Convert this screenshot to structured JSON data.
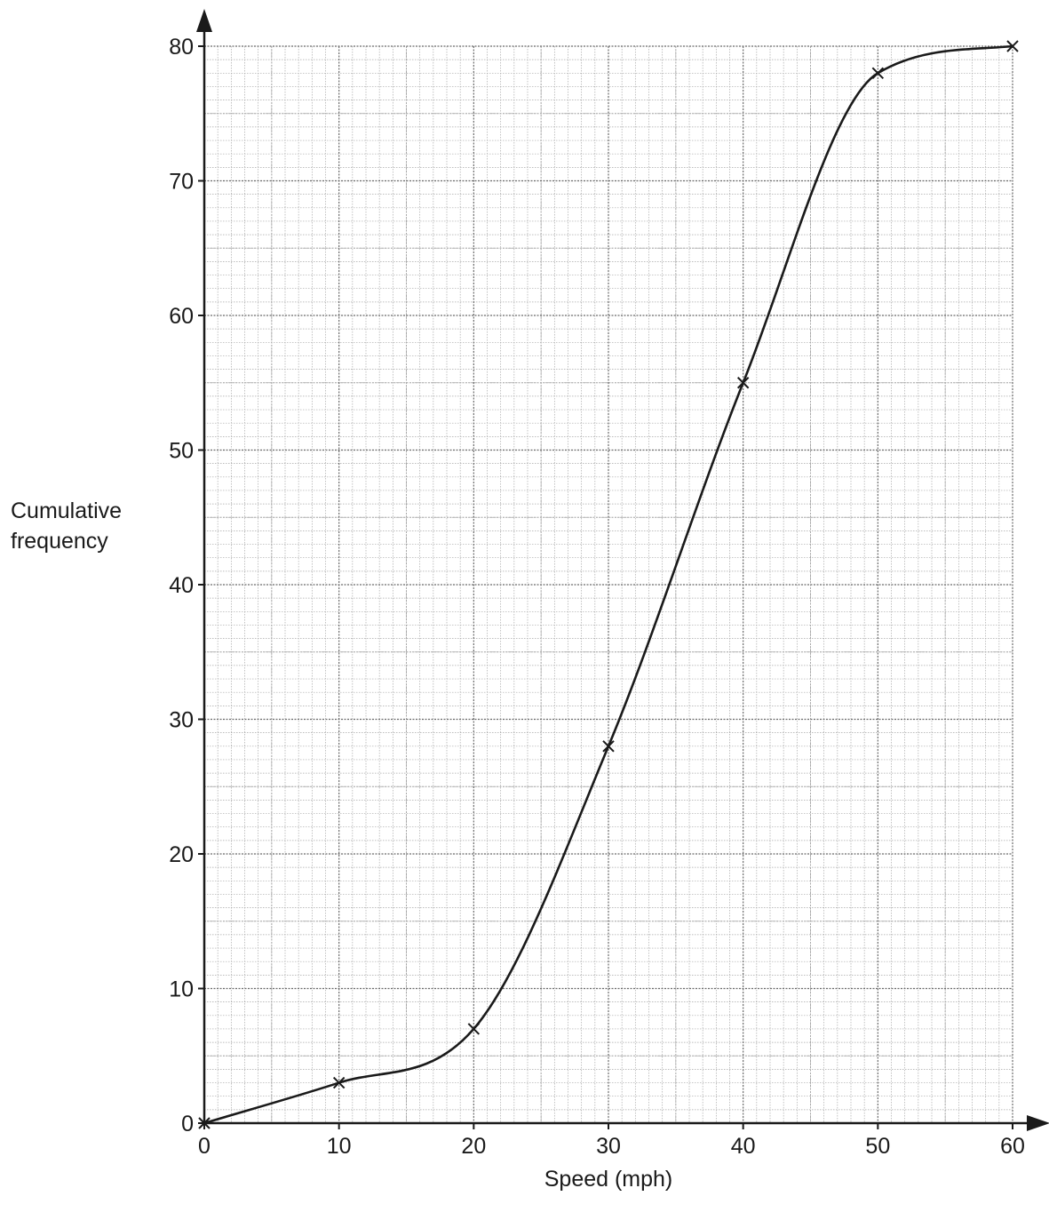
{
  "chart_data": {
    "type": "line",
    "title": "",
    "xlabel": "Speed (mph)",
    "ylabel": [
      "Cumulative",
      "frequency"
    ],
    "xlim": [
      0,
      60
    ],
    "ylim": [
      0,
      80
    ],
    "x_ticks": [
      "0",
      "10",
      "20",
      "30",
      "40",
      "50",
      "60"
    ],
    "y_ticks": [
      "0",
      "10",
      "20",
      "30",
      "40",
      "50",
      "60",
      "70",
      "80"
    ],
    "x_major_step": 10,
    "y_major_step": 10,
    "x_minor_step": 1,
    "y_minor_step": 1,
    "grid": true,
    "marker": "x",
    "series": [
      {
        "points": [
          {
            "x": 0,
            "y": 0
          },
          {
            "x": 10,
            "y": 3
          },
          {
            "x": 20,
            "y": 7
          },
          {
            "x": 30,
            "y": 28
          },
          {
            "x": 40,
            "y": 55
          },
          {
            "x": 50,
            "y": 78
          },
          {
            "x": 60,
            "y": 80
          }
        ]
      }
    ],
    "colors": {
      "line": "#1a1a1a",
      "grid_major": "#6a6a6a",
      "grid_minor": "#a8a8a8"
    }
  }
}
